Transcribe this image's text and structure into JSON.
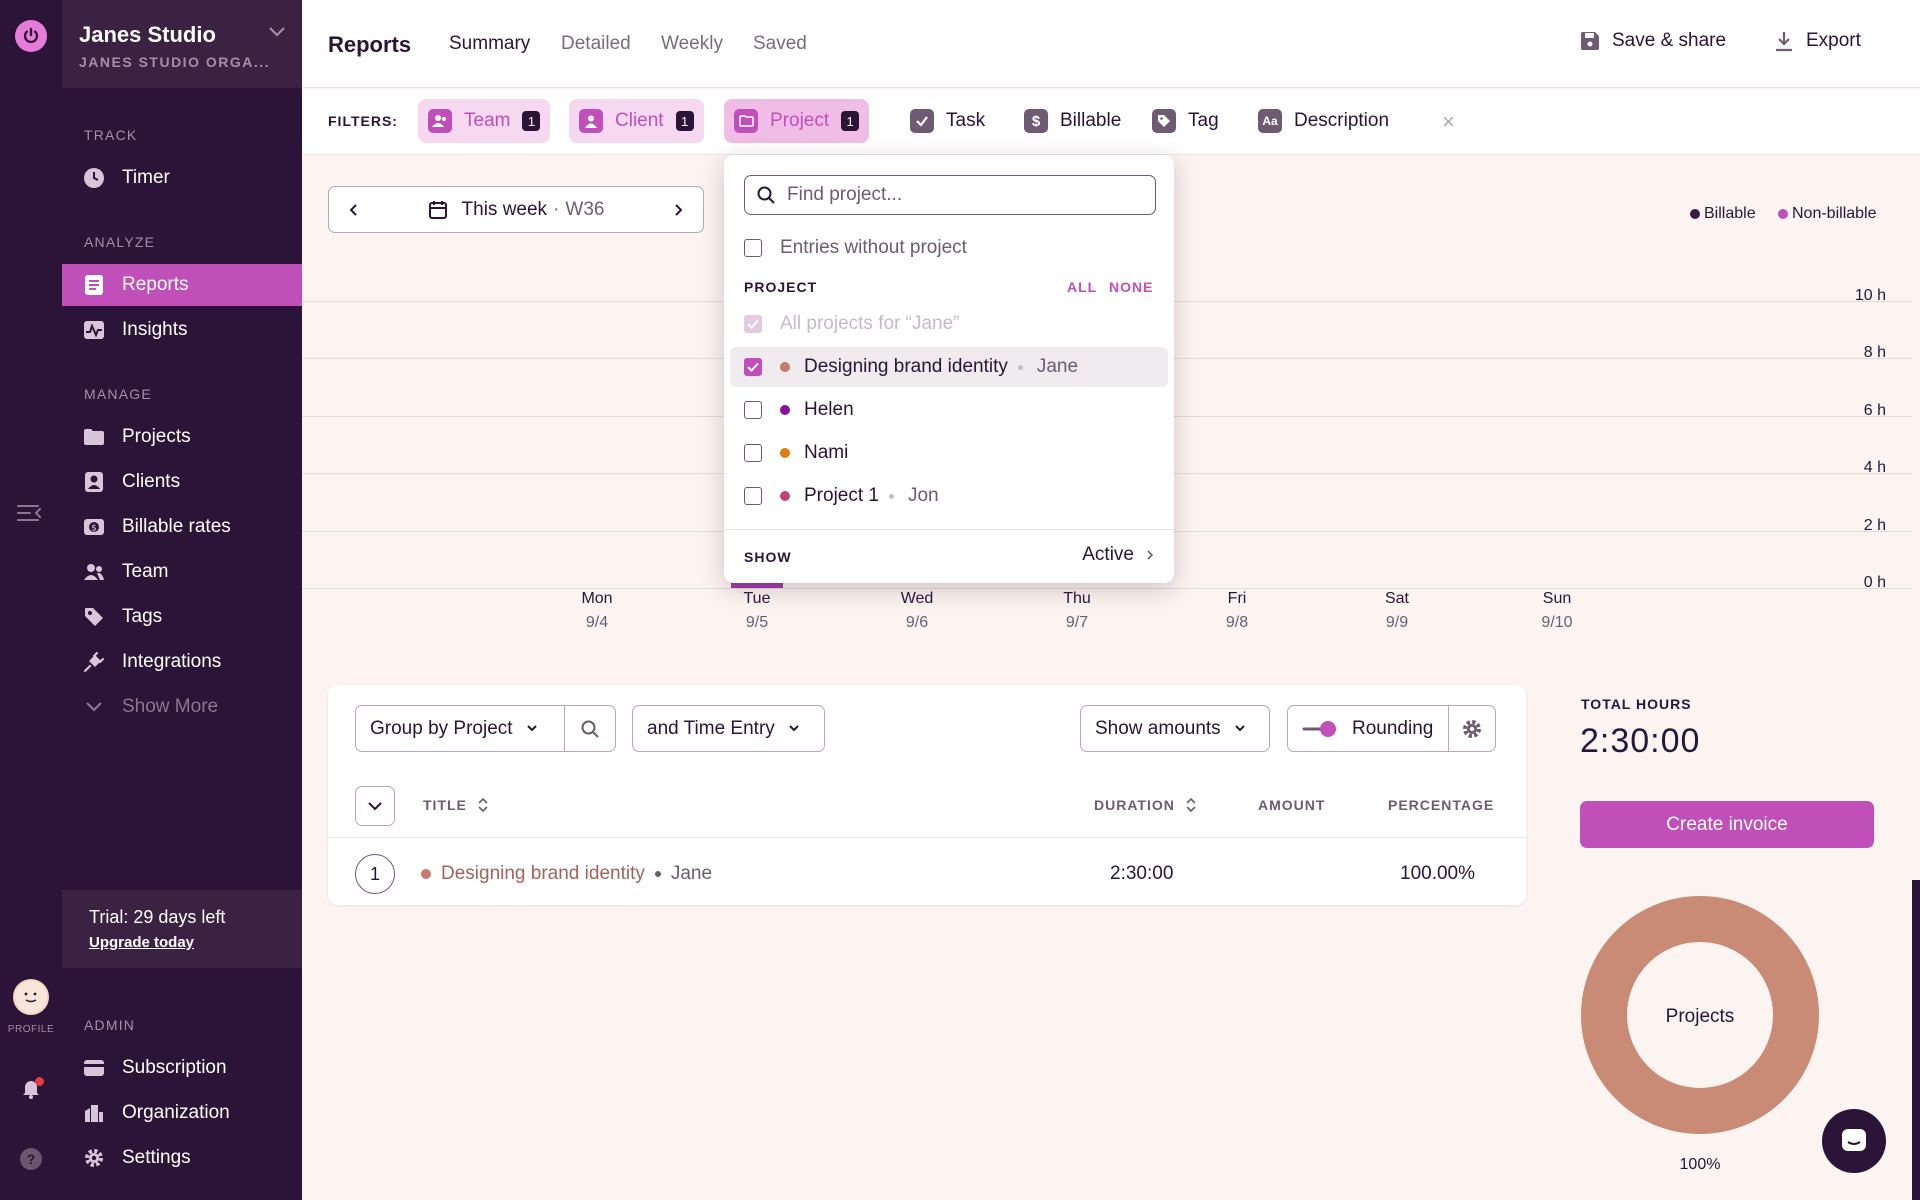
{
  "workspace": {
    "name": "Janes Studio",
    "org": "JANES STUDIO ORGA..."
  },
  "rail": {
    "profile_label": "PROFILE"
  },
  "sidebar": {
    "sections": {
      "track": "TRACK",
      "analyze": "ANALYZE",
      "manage": "MANAGE",
      "admin": "ADMIN"
    },
    "items": {
      "timer": "Timer",
      "reports": "Reports",
      "insights": "Insights",
      "projects": "Projects",
      "clients": "Clients",
      "billable_rates": "Billable rates",
      "team": "Team",
      "tags": "Tags",
      "integrations": "Integrations",
      "show_more": "Show More",
      "subscription": "Subscription",
      "organization": "Organization",
      "settings": "Settings"
    },
    "trial": {
      "text": "Trial: 29 days left",
      "link": "Upgrade today"
    }
  },
  "header": {
    "title": "Reports",
    "tabs": [
      "Summary",
      "Detailed",
      "Weekly",
      "Saved"
    ],
    "save_share": "Save & share",
    "export": "Export"
  },
  "filters": {
    "label": "FILTERS:",
    "team": {
      "label": "Team",
      "count": "1"
    },
    "client": {
      "label": "Client",
      "count": "1"
    },
    "project": {
      "label": "Project",
      "count": "1"
    },
    "task": "Task",
    "billable": "Billable",
    "tag": "Tag",
    "description": "Description",
    "clear": "×"
  },
  "date_range": {
    "label": "This week",
    "sep": "·",
    "week": "W36"
  },
  "legend": {
    "billable": "Billable",
    "non_billable": "Non-billable"
  },
  "chart_data": {
    "type": "bar",
    "y_ticks": [
      "10 h",
      "8 h",
      "6 h",
      "4 h",
      "2 h",
      "0 h"
    ],
    "categories": [
      {
        "day": "Mon",
        "date": "9/4"
      },
      {
        "day": "Tue",
        "date": "9/5"
      },
      {
        "day": "Wed",
        "date": "9/6"
      },
      {
        "day": "Thu",
        "date": "9/7"
      },
      {
        "day": "Fri",
        "date": "9/8"
      },
      {
        "day": "Sat",
        "date": "9/9"
      },
      {
        "day": "Sun",
        "date": "9/10"
      }
    ],
    "values_hours": [
      0,
      2.5,
      0,
      0,
      0,
      0,
      0
    ],
    "ylim": [
      0,
      10
    ]
  },
  "project_dropdown": {
    "search_placeholder": "Find project...",
    "entries_without_project": "Entries without project",
    "section": "PROJECT",
    "all": "ALL",
    "none": "NONE",
    "all_projects": "All projects for “Jane”",
    "projects": [
      {
        "name": "Designing brand identity",
        "client": "Jane",
        "color": "#c57a6a",
        "checked": true
      },
      {
        "name": "Helen",
        "client": "",
        "color": "#8b0f9c",
        "checked": false
      },
      {
        "name": "Nami",
        "client": "",
        "color": "#e07a14",
        "checked": false
      },
      {
        "name": "Project 1",
        "client": "Jon",
        "color": "#c2417c",
        "checked": false
      }
    ],
    "show_label": "SHOW",
    "show_value": "Active"
  },
  "table": {
    "group_by": "Group by Project",
    "sub_group": "and Time Entry",
    "show_amounts": "Show amounts",
    "rounding": "Rounding",
    "columns": {
      "title": "TITLE",
      "duration": "DURATION",
      "amount": "AMOUNT",
      "percentage": "PERCENTAGE"
    },
    "rows": [
      {
        "index": "1",
        "project": "Designing brand identity",
        "client": "Jane",
        "duration": "2:30:00",
        "amount": "",
        "percentage": "100.00%"
      }
    ]
  },
  "summary": {
    "total_label": "TOTAL HOURS",
    "total_value": "2:30:00",
    "create_invoice": "Create invoice",
    "donut_label": "Projects",
    "donut_pct": "100%",
    "donut_color": "#c98a76"
  }
}
